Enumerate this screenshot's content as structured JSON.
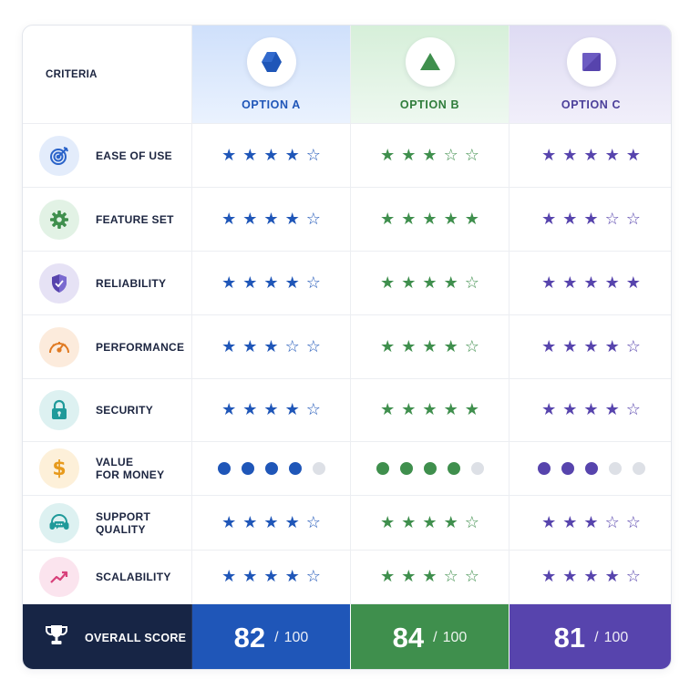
{
  "header": {
    "criteria_label": "CRITERIA",
    "options": [
      {
        "key": "a",
        "label": "OPTION A",
        "logo_icon": "hexagon-icon",
        "color": "#1f56b8"
      },
      {
        "key": "b",
        "label": "OPTION B",
        "logo_icon": "triangle-icon",
        "color": "#3f8f4d"
      },
      {
        "key": "c",
        "label": "OPTION C",
        "logo_icon": "diamond-square-icon",
        "color": "#5744ad"
      }
    ]
  },
  "criteria": [
    {
      "label": "EASE OF USE",
      "icon": "target-icon",
      "icon_color": "#2a63c9",
      "icon_bg": "#e3ecfb",
      "type": "stars",
      "ratings": [
        4,
        3,
        5
      ]
    },
    {
      "label": "FEATURE SET",
      "icon": "gear-icon",
      "icon_color": "#3f8f4d",
      "icon_bg": "#e2f2e5",
      "type": "stars",
      "ratings": [
        4,
        5,
        3
      ]
    },
    {
      "label": "RELIABILITY",
      "icon": "shield-icon",
      "icon_color": "#5744ad",
      "icon_bg": "#e6e2f5",
      "type": "stars",
      "ratings": [
        4,
        4,
        5
      ]
    },
    {
      "label": "PERFORMANCE",
      "icon": "speedometer-icon",
      "icon_color": "#e07a22",
      "icon_bg": "#fcebdc",
      "type": "stars",
      "ratings": [
        3,
        4,
        4
      ]
    },
    {
      "label": "SECURITY",
      "icon": "lock-icon",
      "icon_color": "#1f9a9a",
      "icon_bg": "#ddf1f1",
      "type": "stars",
      "ratings": [
        4,
        5,
        4
      ]
    },
    {
      "label": "VALUE\nFOR MONEY",
      "icon": "dollar-icon",
      "icon_color": "#e79a1c",
      "icon_bg": "#fdf0d9",
      "type": "dots",
      "ratings": [
        4,
        4,
        3
      ]
    },
    {
      "label": "SUPPORT\nQUALITY",
      "icon": "headset-icon",
      "icon_color": "#1f9a9a",
      "icon_bg": "#ddf1f1",
      "type": "stars",
      "ratings": [
        4,
        4,
        3
      ]
    },
    {
      "label": "SCALABILITY",
      "icon": "trend-up-icon",
      "icon_color": "#d8407a",
      "icon_bg": "#fbe4ee",
      "type": "stars",
      "ratings": [
        4,
        3,
        4
      ]
    }
  ],
  "max_rating": 5,
  "footer": {
    "label": "OVERALL SCORE",
    "icon": "trophy-icon",
    "scores": [
      {
        "value": "82",
        "sep": "/",
        "max": "100"
      },
      {
        "value": "84",
        "sep": "/",
        "max": "100"
      },
      {
        "value": "81",
        "sep": "/",
        "max": "100"
      }
    ]
  },
  "colors": {
    "option_a": "#1f56b8",
    "option_b": "#3f8f4d",
    "option_c": "#5744ad",
    "dot_empty": "#dde0e6",
    "footer_label_bg": "#172545"
  }
}
